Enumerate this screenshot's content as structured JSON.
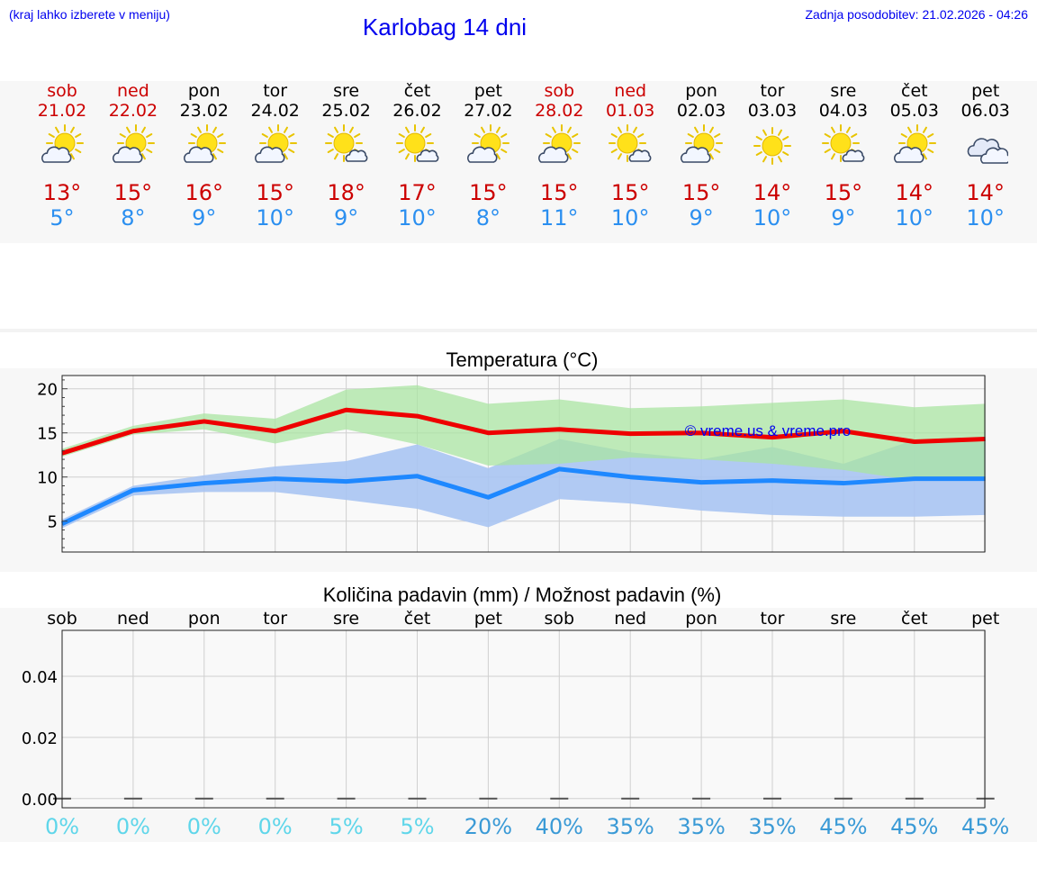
{
  "header": {
    "note": "(kraj lahko izberete v meniju)",
    "title": "Karlobag 14 dni",
    "updated": "Zadnja posodobitev: 21.02.2026 - 04:26"
  },
  "days": [
    {
      "name": "sob",
      "date": "21.02",
      "weekend": true,
      "icon": "partly-cloudy-icon",
      "tmax": "13°",
      "tmin": "5°"
    },
    {
      "name": "ned",
      "date": "22.02",
      "weekend": true,
      "icon": "partly-cloudy-icon",
      "tmax": "15°",
      "tmin": "8°"
    },
    {
      "name": "pon",
      "date": "23.02",
      "weekend": false,
      "icon": "partly-cloudy-icon",
      "tmax": "16°",
      "tmin": "9°"
    },
    {
      "name": "tor",
      "date": "24.02",
      "weekend": false,
      "icon": "partly-cloudy-icon",
      "tmax": "15°",
      "tmin": "10°"
    },
    {
      "name": "sre",
      "date": "25.02",
      "weekend": false,
      "icon": "mostly-sunny-icon",
      "tmax": "18°",
      "tmin": "9°"
    },
    {
      "name": "čet",
      "date": "26.02",
      "weekend": false,
      "icon": "mostly-sunny-icon",
      "tmax": "17°",
      "tmin": "10°"
    },
    {
      "name": "pet",
      "date": "27.02",
      "weekend": false,
      "icon": "partly-cloudy-icon",
      "tmax": "15°",
      "tmin": "8°"
    },
    {
      "name": "sob",
      "date": "28.02",
      "weekend": true,
      "icon": "partly-cloudy-icon",
      "tmax": "15°",
      "tmin": "11°"
    },
    {
      "name": "ned",
      "date": "01.03",
      "weekend": true,
      "icon": "mostly-sunny-icon",
      "tmax": "15°",
      "tmin": "10°"
    },
    {
      "name": "pon",
      "date": "02.03",
      "weekend": false,
      "icon": "partly-cloudy-icon",
      "tmax": "15°",
      "tmin": "9°"
    },
    {
      "name": "tor",
      "date": "03.03",
      "weekend": false,
      "icon": "sunny-icon",
      "tmax": "14°",
      "tmin": "10°"
    },
    {
      "name": "sre",
      "date": "04.03",
      "weekend": false,
      "icon": "mostly-sunny-icon",
      "tmax": "15°",
      "tmin": "9°"
    },
    {
      "name": "čet",
      "date": "05.03",
      "weekend": false,
      "icon": "partly-cloudy-icon",
      "tmax": "14°",
      "tmin": "10°"
    },
    {
      "name": "pet",
      "date": "06.03",
      "weekend": false,
      "icon": "cloudy-icon",
      "tmax": "14°",
      "tmin": "10°"
    }
  ],
  "colors": {
    "max_line": "#ee0000",
    "min_line": "#1e88ff",
    "max_band": "#a9e4a2",
    "min_band": "#a9c4f2",
    "overlap_band": "#83c8a8",
    "weekend_text": "#cc0000",
    "link": "#0000ee"
  },
  "chart_data": [
    {
      "type": "line",
      "title": "Temperatura (°C)",
      "watermark": "© vreme.us & vreme.pro",
      "x": [
        0,
        1,
        2,
        3,
        4,
        5,
        6,
        7,
        8,
        9,
        10,
        11,
        12,
        13
      ],
      "ylim": [
        1.5,
        21.5
      ],
      "yticks": [
        "5",
        "10",
        "15",
        "20"
      ],
      "ytick_values": [
        5,
        10,
        15,
        20
      ],
      "series": [
        {
          "name": "max",
          "values": [
            12.7,
            15.2,
            16.3,
            15.2,
            17.6,
            16.9,
            15.0,
            15.4,
            14.9,
            15.0,
            14.5,
            15.2,
            14.0,
            14.3
          ]
        },
        {
          "name": "min",
          "values": [
            4.7,
            8.5,
            9.3,
            9.8,
            9.5,
            10.1,
            7.7,
            10.9,
            10.0,
            9.4,
            9.6,
            9.3,
            9.8,
            9.8
          ]
        },
        {
          "name": "max_range_low",
          "values": [
            12.3,
            14.8,
            15.4,
            13.8,
            15.4,
            13.7,
            11.3,
            11.5,
            12.2,
            12.0,
            11.5,
            10.8,
            9.6,
            9.8
          ]
        },
        {
          "name": "max_range_high",
          "values": [
            13.2,
            15.8,
            17.2,
            16.6,
            19.9,
            20.4,
            18.3,
            18.8,
            17.8,
            18.0,
            18.4,
            18.8,
            17.9,
            18.3
          ]
        },
        {
          "name": "min_range_low",
          "values": [
            4.2,
            7.9,
            8.3,
            8.3,
            7.4,
            6.4,
            4.3,
            7.5,
            7.0,
            6.2,
            5.7,
            5.5,
            5.5,
            5.7
          ]
        },
        {
          "name": "min_range_high",
          "values": [
            5.2,
            9.0,
            10.2,
            11.2,
            11.8,
            13.7,
            11.0,
            14.3,
            12.8,
            12.0,
            13.4,
            11.5,
            14.2,
            14.0
          ]
        }
      ]
    },
    {
      "type": "bar",
      "title": "Količina padavin (mm) / Možnost padavin (%)",
      "categories": [
        "sob",
        "ned",
        "pon",
        "tor",
        "sre",
        "čet",
        "pet",
        "sob",
        "ned",
        "pon",
        "tor",
        "sre",
        "čet",
        "pet"
      ],
      "values": [
        0,
        0,
        0,
        0,
        0,
        0,
        0,
        0,
        0,
        0,
        0,
        0,
        0,
        0
      ],
      "ylim": [
        -0.003,
        0.055
      ],
      "yticks": [
        "0.00",
        "0.02",
        "0.04"
      ],
      "ytick_values": [
        0,
        0.02,
        0.04
      ],
      "probability": [
        "0%",
        "0%",
        "0%",
        "0%",
        "5%",
        "5%",
        "20%",
        "40%",
        "35%",
        "35%",
        "35%",
        "45%",
        "45%",
        "45%"
      ],
      "probability_values": [
        0,
        0,
        0,
        0,
        5,
        5,
        20,
        40,
        35,
        35,
        35,
        45,
        45,
        45
      ]
    }
  ]
}
